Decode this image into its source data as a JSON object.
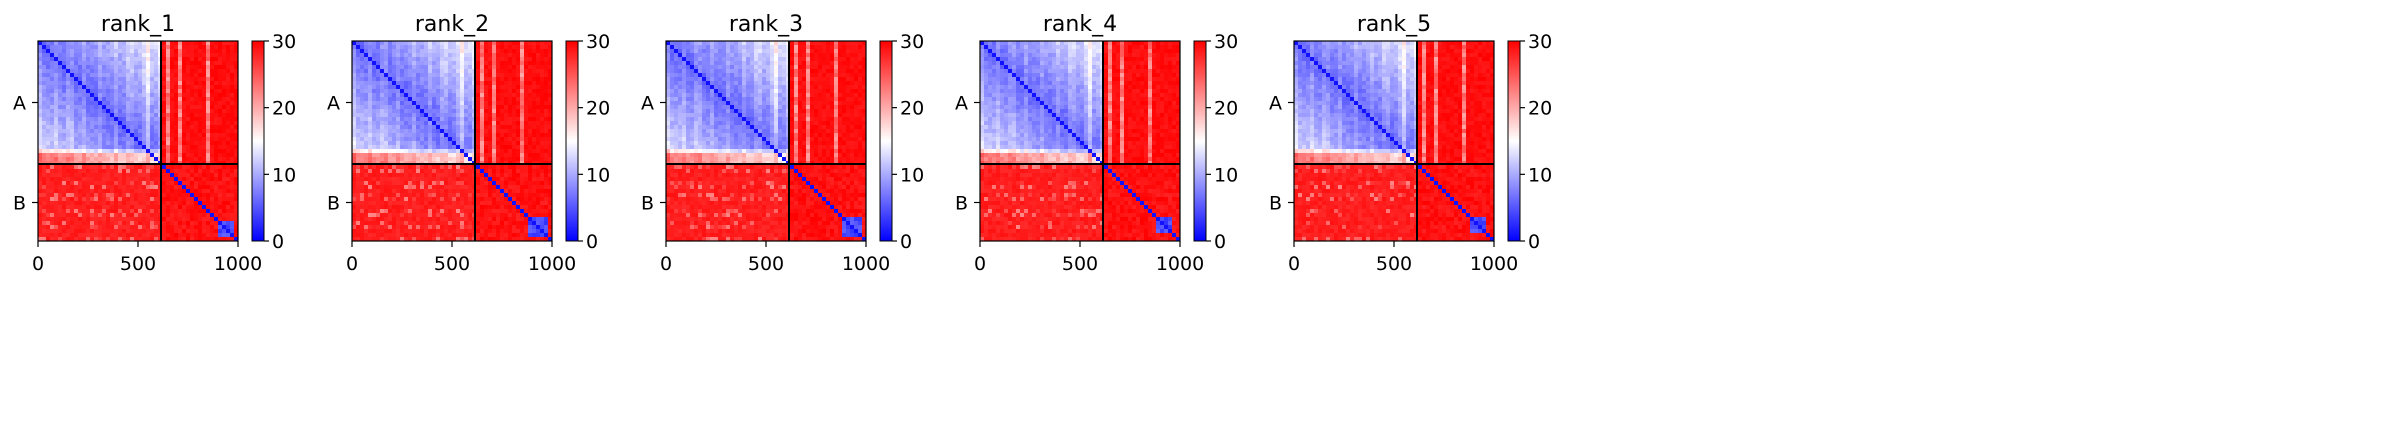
{
  "chart_data": {
    "type": "heatmap",
    "description_colormap": "bwr",
    "colors": {
      "low": "#0000ff",
      "mid": "#ffffff",
      "high": "#ff0000",
      "divider": "#000000"
    },
    "chain_labels": [
      "A",
      "B"
    ],
    "chain_boundary": 615,
    "matrix_size": 1000,
    "x_ticks": [
      0,
      500,
      1000
    ],
    "colorbar": {
      "min": 0,
      "max": 30,
      "ticks": [
        0,
        10,
        20,
        30
      ]
    },
    "panels": [
      {
        "title": "rank_1",
        "chainA_to_B_error": 30,
        "chainB_to_A_error": 29,
        "hot_block": [
          900,
          980
        ]
      },
      {
        "title": "rank_2",
        "chainA_to_B_error": 30,
        "chainB_to_A_error": 29,
        "hot_block": [
          890,
          975
        ]
      },
      {
        "title": "rank_3",
        "chainA_to_B_error": 30,
        "chainB_to_A_error": 29,
        "hot_block": [
          890,
          975
        ]
      },
      {
        "title": "rank_4",
        "chainA_to_B_error": 30,
        "chainB_to_A_error": 29,
        "hot_block": [
          880,
          960
        ]
      },
      {
        "title": "rank_5",
        "chainA_to_B_error": 30,
        "chainB_to_A_error": 29,
        "hot_block": [
          880,
          960
        ]
      }
    ]
  }
}
